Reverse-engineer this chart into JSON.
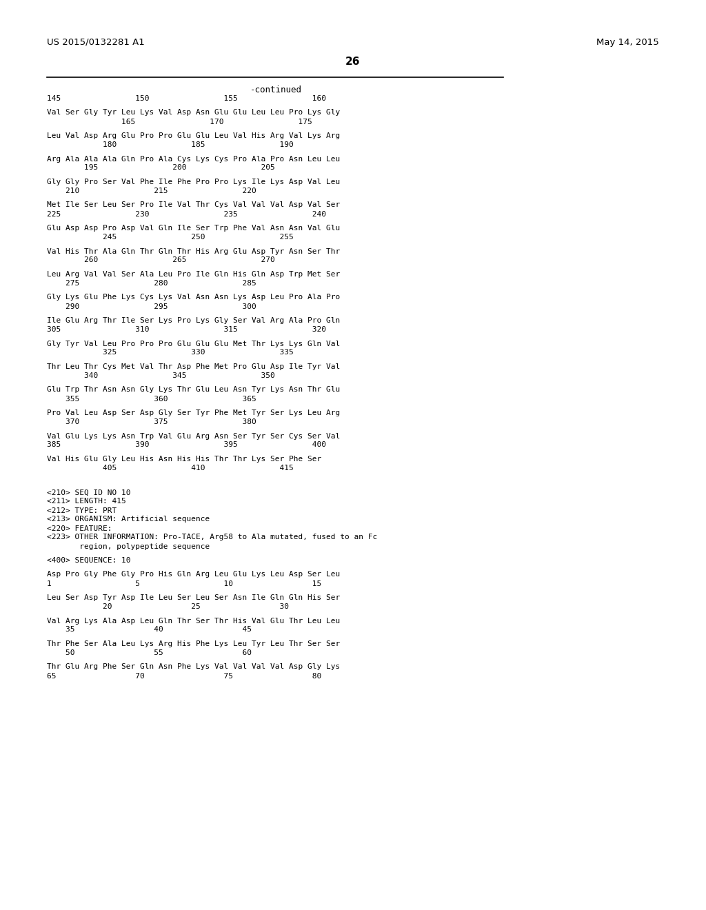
{
  "header_left": "US 2015/0132281 A1",
  "header_right": "May 14, 2015",
  "page_number": "26",
  "continued_label": "-continued",
  "background_color": "#ffffff",
  "text_color": "#000000",
  "sequence_lines": [
    {
      "type": "ruler",
      "text": "145                150                155                160"
    },
    {
      "type": "blank"
    },
    {
      "type": "seq",
      "text": "Val Ser Gly Tyr Leu Lys Val Asp Asn Glu Glu Leu Leu Pro Lys Gly"
    },
    {
      "type": "num",
      "text": "                165                170                175"
    },
    {
      "type": "blank"
    },
    {
      "type": "seq",
      "text": "Leu Val Asp Arg Glu Pro Pro Glu Glu Leu Val His Arg Val Lys Arg"
    },
    {
      "type": "num",
      "text": "            180                185                190"
    },
    {
      "type": "blank"
    },
    {
      "type": "seq",
      "text": "Arg Ala Ala Ala Gln Pro Ala Cys Lys Cys Pro Ala Pro Asn Leu Leu"
    },
    {
      "type": "num",
      "text": "        195                200                205"
    },
    {
      "type": "blank"
    },
    {
      "type": "seq",
      "text": "Gly Gly Pro Ser Val Phe Ile Phe Pro Pro Lys Ile Lys Asp Val Leu"
    },
    {
      "type": "num",
      "text": "    210                215                220"
    },
    {
      "type": "blank"
    },
    {
      "type": "seq",
      "text": "Met Ile Ser Leu Ser Pro Ile Val Thr Cys Val Val Val Asp Val Ser"
    },
    {
      "type": "num",
      "text": "225                230                235                240"
    },
    {
      "type": "blank"
    },
    {
      "type": "seq",
      "text": "Glu Asp Asp Pro Asp Val Gln Ile Ser Trp Phe Val Asn Asn Val Glu"
    },
    {
      "type": "num",
      "text": "            245                250                255"
    },
    {
      "type": "blank"
    },
    {
      "type": "seq",
      "text": "Val His Thr Ala Gln Thr Gln Thr His Arg Glu Asp Tyr Asn Ser Thr"
    },
    {
      "type": "num",
      "text": "        260                265                270"
    },
    {
      "type": "blank"
    },
    {
      "type": "seq",
      "text": "Leu Arg Val Val Ser Ala Leu Pro Ile Gln His Gln Asp Trp Met Ser"
    },
    {
      "type": "num",
      "text": "    275                280                285"
    },
    {
      "type": "blank"
    },
    {
      "type": "seq",
      "text": "Gly Lys Glu Phe Lys Cys Lys Val Asn Asn Lys Asp Leu Pro Ala Pro"
    },
    {
      "type": "num",
      "text": "    290                295                300"
    },
    {
      "type": "blank"
    },
    {
      "type": "seq",
      "text": "Ile Glu Arg Thr Ile Ser Lys Pro Lys Gly Ser Val Arg Ala Pro Gln"
    },
    {
      "type": "num",
      "text": "305                310                315                320"
    },
    {
      "type": "blank"
    },
    {
      "type": "seq",
      "text": "Gly Tyr Val Leu Pro Pro Pro Glu Glu Glu Met Thr Lys Lys Gln Val"
    },
    {
      "type": "num",
      "text": "            325                330                335"
    },
    {
      "type": "blank"
    },
    {
      "type": "seq",
      "text": "Thr Leu Thr Cys Met Val Thr Asp Phe Met Pro Glu Asp Ile Tyr Val"
    },
    {
      "type": "num",
      "text": "        340                345                350"
    },
    {
      "type": "blank"
    },
    {
      "type": "seq",
      "text": "Glu Trp Thr Asn Asn Gly Lys Thr Glu Leu Asn Tyr Lys Asn Thr Glu"
    },
    {
      "type": "num",
      "text": "    355                360                365"
    },
    {
      "type": "blank"
    },
    {
      "type": "seq",
      "text": "Pro Val Leu Asp Ser Asp Gly Ser Tyr Phe Met Tyr Ser Lys Leu Arg"
    },
    {
      "type": "num",
      "text": "    370                375                380"
    },
    {
      "type": "blank"
    },
    {
      "type": "seq",
      "text": "Val Glu Lys Lys Asn Trp Val Glu Arg Asn Ser Tyr Ser Cys Ser Val"
    },
    {
      "type": "num",
      "text": "385                390                395                400"
    },
    {
      "type": "blank"
    },
    {
      "type": "seq",
      "text": "Val His Glu Gly Leu His Asn His His Thr Thr Lys Ser Phe Ser"
    },
    {
      "type": "num",
      "text": "            405                410                415"
    },
    {
      "type": "blank"
    },
    {
      "type": "blank"
    },
    {
      "type": "blank"
    },
    {
      "type": "meta",
      "text": "<210> SEQ ID NO 10"
    },
    {
      "type": "meta",
      "text": "<211> LENGTH: 415"
    },
    {
      "type": "meta",
      "text": "<212> TYPE: PRT"
    },
    {
      "type": "meta",
      "text": "<213> ORGANISM: Artificial sequence"
    },
    {
      "type": "meta",
      "text": "<220> FEATURE:"
    },
    {
      "type": "meta",
      "text": "<223> OTHER INFORMATION: Pro-TACE, Arg58 to Ala mutated, fused to an Fc"
    },
    {
      "type": "meta2",
      "text": "       region, polypeptide sequence"
    },
    {
      "type": "blank"
    },
    {
      "type": "meta",
      "text": "<400> SEQUENCE: 10"
    },
    {
      "type": "blank"
    },
    {
      "type": "seq",
      "text": "Asp Pro Gly Phe Gly Pro His Gln Arg Leu Glu Lys Leu Asp Ser Leu"
    },
    {
      "type": "num",
      "text": "1                  5                  10                 15"
    },
    {
      "type": "blank"
    },
    {
      "type": "seq",
      "text": "Leu Ser Asp Tyr Asp Ile Leu Ser Leu Ser Asn Ile Gln Gln His Ser"
    },
    {
      "type": "num",
      "text": "            20                 25                 30"
    },
    {
      "type": "blank"
    },
    {
      "type": "seq",
      "text": "Val Arg Lys Ala Asp Leu Gln Thr Ser Thr His Val Glu Thr Leu Leu"
    },
    {
      "type": "num",
      "text": "    35                 40                 45"
    },
    {
      "type": "blank"
    },
    {
      "type": "seq",
      "text": "Thr Phe Ser Ala Leu Lys Arg His Phe Lys Leu Tyr Leu Thr Ser Ser"
    },
    {
      "type": "num",
      "text": "    50                 55                 60"
    },
    {
      "type": "blank"
    },
    {
      "type": "seq",
      "text": "Thr Glu Arg Phe Ser Gln Asn Phe Lys Val Val Val Val Asp Gly Lys"
    },
    {
      "type": "num",
      "text": "65                 70                 75                 80"
    }
  ]
}
